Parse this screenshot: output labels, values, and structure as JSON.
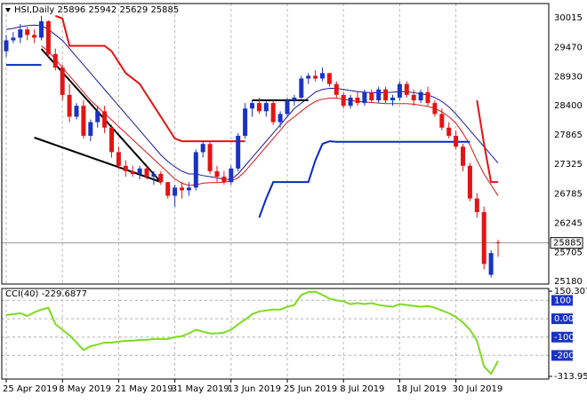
{
  "chart_data": {
    "type": "candlestick",
    "title": "HSI,Daily 25896 25942 25629 25885",
    "categories": [
      "25 Apr 2019",
      null,
      null,
      null,
      null,
      null,
      null,
      null,
      "8 May 2019",
      null,
      null,
      null,
      null,
      null,
      null,
      null,
      "21 May 2019",
      null,
      null,
      null,
      null,
      null,
      null,
      null,
      "31 May 2019",
      null,
      null,
      null,
      null,
      null,
      null,
      null,
      "13 Jun 2019",
      null,
      null,
      null,
      null,
      null,
      null,
      null,
      "25 Jun 2019",
      null,
      null,
      null,
      null,
      null,
      null,
      null,
      "8 Jul 2019",
      null,
      null,
      null,
      null,
      null,
      null,
      null,
      "18 Jul 2019",
      null,
      null,
      null,
      null,
      null,
      null,
      null,
      "30 Jul 2019",
      null,
      null,
      null,
      null,
      null,
      null
    ],
    "open": [
      29400,
      29600,
      29650,
      29800,
      29700,
      29650,
      29950,
      29350,
      29100,
      28600,
      28200,
      28400,
      27850,
      28100,
      28300,
      28000,
      27550,
      27300,
      27200,
      27150,
      27250,
      27100,
      27150,
      27000,
      26750,
      26900,
      26850,
      26900,
      27550,
      27700,
      27200,
      27100,
      27000,
      27250,
      27850,
      28350,
      28450,
      28300,
      28450,
      28100,
      28250,
      28500,
      28550,
      28900,
      28950,
      28900,
      29000,
      28800,
      28600,
      28400,
      28550,
      28450,
      28650,
      28500,
      28700,
      28500,
      28550,
      28800,
      28600,
      28500,
      28650,
      28450,
      28250,
      28000,
      27850,
      27650,
      27300,
      26700,
      26450,
      25300,
      25896
    ],
    "high": [
      29700,
      29750,
      29900,
      29850,
      29800,
      30050,
      29970,
      29450,
      29150,
      28800,
      28450,
      28500,
      28150,
      28400,
      28400,
      28050,
      27650,
      27400,
      27300,
      27300,
      27300,
      27200,
      27200,
      27000,
      26950,
      27000,
      27000,
      27600,
      27750,
      27750,
      27300,
      27200,
      27300,
      27900,
      28450,
      28500,
      28550,
      28500,
      28500,
      28300,
      28550,
      28600,
      28950,
      29000,
      29050,
      29100,
      29000,
      28850,
      28650,
      28600,
      28650,
      28700,
      28700,
      28750,
      28750,
      28600,
      28850,
      28850,
      28700,
      28700,
      28750,
      28500,
      28350,
      28100,
      27950,
      27700,
      27350,
      26800,
      26550,
      25750,
      25942
    ],
    "low": [
      29300,
      29550,
      29550,
      29600,
      29550,
      29600,
      29300,
      29050,
      28500,
      28100,
      28150,
      27800,
      27750,
      28000,
      27900,
      27450,
      27250,
      27100,
      27100,
      27050,
      27050,
      26950,
      26950,
      26700,
      26550,
      26700,
      26750,
      26850,
      27450,
      27150,
      27000,
      26950,
      26950,
      27200,
      27800,
      28200,
      28250,
      28200,
      28050,
      28000,
      28200,
      28400,
      28500,
      28800,
      28850,
      28850,
      28750,
      28550,
      28350,
      28350,
      28400,
      28400,
      28450,
      28450,
      28450,
      28400,
      28500,
      28550,
      28400,
      28450,
      28400,
      28200,
      27950,
      27800,
      27600,
      27200,
      26650,
      26350,
      25400,
      25250,
      25629
    ],
    "close": [
      29600,
      29650,
      29800,
      29700,
      29650,
      29950,
      29350,
      29100,
      28600,
      28200,
      28400,
      27850,
      28100,
      28300,
      28000,
      27550,
      27300,
      27200,
      27150,
      27250,
      27100,
      27150,
      27000,
      26750,
      26900,
      26850,
      26900,
      27550,
      27700,
      27200,
      27100,
      27000,
      27250,
      27850,
      28350,
      28450,
      28300,
      28450,
      28100,
      28250,
      28500,
      28550,
      28900,
      28950,
      28900,
      29000,
      28800,
      28600,
      28400,
      28550,
      28450,
      28650,
      28500,
      28700,
      28500,
      28550,
      28800,
      28600,
      28500,
      28650,
      28450,
      28250,
      28000,
      27850,
      27650,
      27300,
      26700,
      26450,
      25500,
      25700,
      25885
    ],
    "up_color": "#1a33c4",
    "down_color": "#e31414",
    "ylim": [
      25131,
      30275
    ],
    "yticks": [
      30015,
      29470,
      28930,
      28400,
      27865,
      27325,
      26785,
      26245,
      25705,
      25180
    ],
    "grid": true,
    "overlays": [
      {
        "color": "#1a1a9a",
        "width": 1,
        "values": [
          29800,
          29820,
          29850,
          29870,
          29880,
          29870,
          29800,
          29700,
          29600,
          29450,
          29300,
          29150,
          29000,
          28850,
          28700,
          28550,
          28400,
          28250,
          28100,
          27950,
          27800,
          27650,
          27500,
          27380,
          27280,
          27200,
          27150,
          27150,
          27120,
          27100,
          27080,
          27050,
          27050,
          27150,
          27300,
          27450,
          27600,
          27750,
          27900,
          28050,
          28200,
          28350,
          28450,
          28550,
          28650,
          28700,
          28720,
          28720,
          28700,
          28680,
          28660,
          28650,
          28640,
          28640,
          28640,
          28650,
          28660,
          28660,
          28640,
          28620,
          28600,
          28550,
          28480,
          28380,
          28250,
          28100,
          27950,
          27800,
          27650,
          27500,
          27350
        ]
      },
      {
        "color": "#d41818",
        "width": 1,
        "values": [
          null,
          null,
          null,
          null,
          null,
          29500,
          29400,
          29250,
          29100,
          28950,
          28800,
          28650,
          28500,
          28380,
          28260,
          28140,
          28020,
          27900,
          27780,
          27660,
          27540,
          27420,
          27300,
          27180,
          27060,
          26980,
          26940,
          26950,
          26980,
          26990,
          26990,
          27000,
          27020,
          27080,
          27200,
          27350,
          27500,
          27650,
          27800,
          27950,
          28100,
          28200,
          28300,
          28400,
          28480,
          28520,
          28540,
          28540,
          28520,
          28500,
          28480,
          28470,
          28460,
          28450,
          28440,
          28440,
          28440,
          28440,
          28430,
          28410,
          28390,
          28350,
          28290,
          28200,
          28080,
          27900,
          27680,
          27400,
          27150,
          26950,
          26750
        ]
      },
      {
        "color": "#e31414",
        "width": 2,
        "values": [
          null,
          null,
          null,
          null,
          null,
          null,
          null,
          30050,
          30000,
          29500,
          29500,
          29500,
          29500,
          29500,
          29500,
          29400,
          29200,
          29000,
          28900,
          28800,
          28600,
          28400,
          28200,
          28000,
          27800,
          27750,
          27750,
          27750,
          27750,
          27750,
          27750,
          27750,
          27750,
          27750,
          27750,
          null,
          null,
          null,
          null,
          null,
          null,
          null,
          null,
          null,
          null,
          null,
          null,
          null,
          null,
          null,
          null,
          null,
          null,
          null,
          null,
          null,
          null,
          null,
          null,
          null,
          null,
          null,
          null,
          null,
          null,
          null,
          null,
          28500,
          27700,
          27000,
          27000
        ]
      },
      {
        "color": "#0a28c8",
        "width": 2,
        "values": [
          29150,
          29150,
          29150,
          29150,
          29150,
          29150,
          null,
          null,
          null,
          null,
          null,
          null,
          null,
          null,
          null,
          null,
          null,
          null,
          null,
          null,
          null,
          null,
          null,
          null,
          null,
          null,
          null,
          null,
          null,
          null,
          null,
          null,
          null,
          null,
          null,
          null,
          26350,
          26700,
          27000,
          27000,
          27000,
          27000,
          27000,
          27000,
          27400,
          27700,
          27750,
          27740,
          27740,
          27740,
          27740,
          27740,
          27740,
          27740,
          27740,
          27740,
          27740,
          27740,
          27740,
          27740,
          27740,
          27740,
          27740,
          27740,
          27740,
          27740,
          27740,
          null,
          null,
          null,
          null
        ]
      }
    ],
    "trendlines": [
      {
        "color": "#000000",
        "x": [
          5,
          22
        ],
        "values": [
          29445,
          27003
        ]
      },
      {
        "color": "#000000",
        "x": [
          4,
          22
        ],
        "values": [
          27817,
          27003
        ]
      },
      {
        "color": "#000000",
        "x": [
          35,
          43
        ],
        "values": [
          28500,
          28500
        ]
      }
    ],
    "indicator": {
      "type": "line",
      "title": "CCI(40) -229.6877",
      "color": "#7ddc1f",
      "level_color": "#1a33c4",
      "values": [
        20,
        25,
        30,
        15,
        35,
        50,
        60,
        -30,
        -60,
        -90,
        -130,
        -170,
        -150,
        -140,
        -130,
        -130,
        -125,
        -120,
        -120,
        -115,
        -115,
        -110,
        -110,
        -110,
        -100,
        -95,
        -80,
        -60,
        -70,
        -80,
        -80,
        -75,
        -60,
        -30,
        -5,
        25,
        40,
        45,
        50,
        50,
        65,
        75,
        130,
        145,
        148,
        130,
        110,
        100,
        95,
        80,
        85,
        80,
        85,
        75,
        70,
        65,
        80,
        75,
        70,
        65,
        70,
        60,
        45,
        30,
        10,
        -20,
        -60,
        -120,
        -260,
        -300,
        -229.6877
      ],
      "ylim": [
        -313.95,
        150.3071
      ],
      "yticks": [
        150.3071,
        100,
        {
          "value": 0,
          "label": "0.00"
        },
        -100,
        -200,
        {
          "value": -313.95,
          "label": "-313.9500"
        }
      ],
      "levels": [
        100,
        0,
        -100,
        -200
      ]
    }
  }
}
